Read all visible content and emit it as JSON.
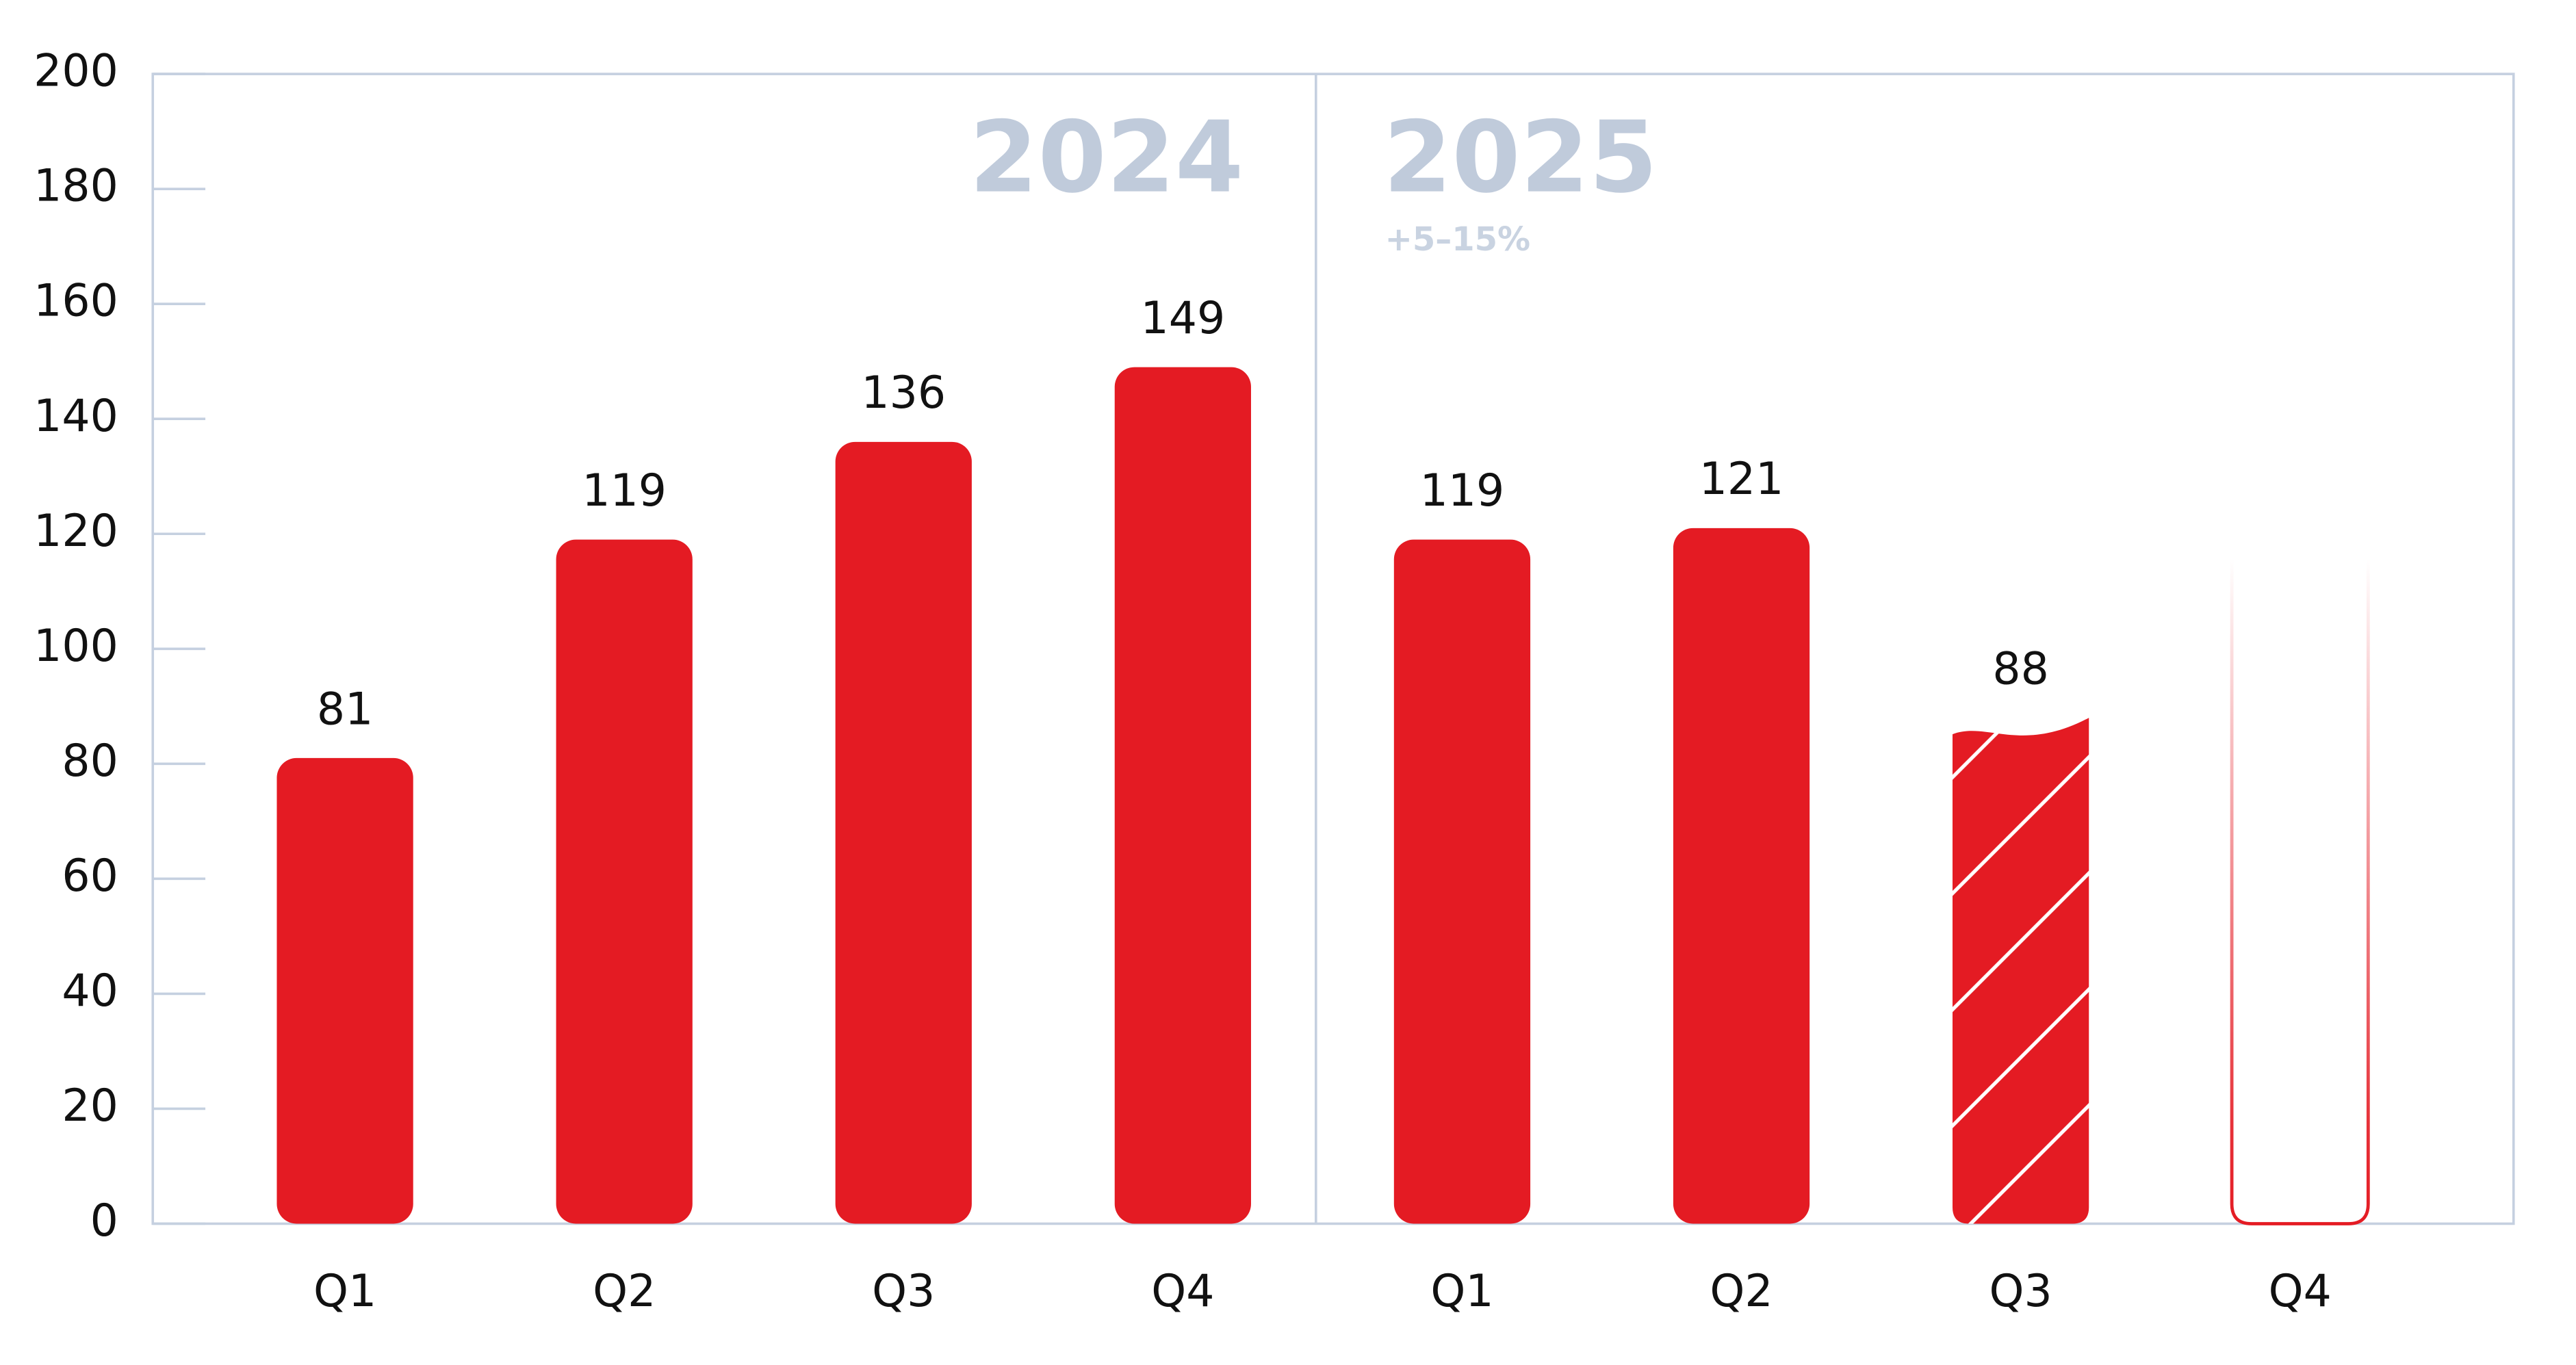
{
  "chart_data": {
    "type": "bar",
    "categories": [
      "Q1",
      "Q2",
      "Q3",
      "Q4",
      "Q1",
      "Q2",
      "Q3",
      "Q4"
    ],
    "values": [
      81,
      119,
      136,
      149,
      119,
      121,
      88,
      null
    ],
    "styles": [
      "solid",
      "solid",
      "solid",
      "solid",
      "solid",
      "solid",
      "hatched",
      "outline"
    ],
    "color": "#e41b23",
    "groups": [
      {
        "label": "2024"
      },
      {
        "label": "2025",
        "note": "+5–15%"
      }
    ],
    "ylim": [
      0,
      200
    ],
    "yticks": [
      0,
      20,
      40,
      60,
      80,
      100,
      120,
      140,
      160,
      180,
      200
    ]
  }
}
